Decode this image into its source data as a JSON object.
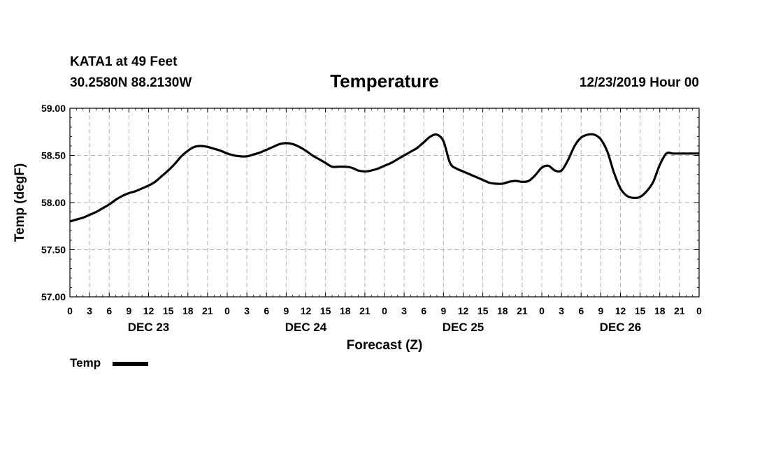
{
  "header": {
    "station": "KATA1 at 49 Feet",
    "coords": "30.2580N 88.2130W",
    "title": "Temperature",
    "datetime": "12/23/2019 Hour 00"
  },
  "chart_data": {
    "type": "line",
    "title": "Temperature",
    "xlabel": "Forecast (Z)",
    "ylabel": "Temp (degF)",
    "ylim": [
      57.0,
      59.0
    ],
    "xlim": [
      0,
      96
    ],
    "yticks": [
      "57.00",
      "57.50",
      "58.00",
      "58.50",
      "59.00"
    ],
    "ytick_values": [
      57.0,
      57.5,
      58.0,
      58.5,
      59.0
    ],
    "xtick_labels": [
      "0",
      "3",
      "6",
      "9",
      "12",
      "15",
      "18",
      "21",
      "0",
      "3",
      "6",
      "9",
      "12",
      "15",
      "18",
      "21",
      "0",
      "3",
      "6",
      "9",
      "12",
      "15",
      "18",
      "21",
      "0",
      "3",
      "6",
      "9",
      "12",
      "15",
      "18",
      "21",
      "0"
    ],
    "day_labels": [
      {
        "label": "DEC 23",
        "hour": 12
      },
      {
        "label": "DEC 24",
        "hour": 36
      },
      {
        "label": "DEC 25",
        "hour": 60
      },
      {
        "label": "DEC 26",
        "hour": 84
      }
    ],
    "grid": true,
    "legend": "bottom-left",
    "series": [
      {
        "name": "Temp",
        "color": "#000000",
        "x": [
          0,
          1,
          2,
          3,
          4,
          5,
          6,
          7,
          8,
          9,
          10,
          11,
          12,
          13,
          14,
          15,
          16,
          17,
          18,
          19,
          20,
          21,
          22,
          23,
          24,
          25,
          26,
          27,
          28,
          29,
          30,
          31,
          32,
          33,
          34,
          35,
          36,
          37,
          38,
          39,
          40,
          41,
          42,
          43,
          44,
          45,
          46,
          47,
          48,
          49,
          50,
          51,
          52,
          53,
          54,
          55,
          56,
          57,
          58,
          59,
          60,
          61,
          62,
          63,
          64,
          65,
          66,
          67,
          68,
          69,
          70,
          71,
          72,
          73,
          74,
          75,
          76,
          77,
          78,
          79,
          80,
          81,
          82,
          83,
          84,
          85,
          86,
          87,
          88,
          89,
          90,
          91,
          92,
          93,
          94,
          95,
          96
        ],
        "values": [
          57.8,
          57.82,
          57.84,
          57.87,
          57.9,
          57.94,
          57.98,
          58.03,
          58.07,
          58.1,
          58.12,
          58.15,
          58.18,
          58.22,
          58.28,
          58.34,
          58.41,
          58.49,
          58.55,
          58.59,
          58.6,
          58.59,
          58.57,
          58.55,
          58.52,
          58.5,
          58.49,
          58.49,
          58.51,
          58.53,
          58.56,
          58.59,
          58.62,
          58.63,
          58.62,
          58.59,
          58.55,
          58.5,
          58.46,
          58.42,
          58.38,
          58.38,
          58.38,
          58.37,
          58.34,
          58.33,
          58.34,
          58.36,
          58.39,
          58.42,
          58.46,
          58.5,
          58.54,
          58.58,
          58.64,
          58.7,
          58.72,
          58.65,
          58.42,
          58.36,
          58.33,
          58.3,
          58.27,
          58.24,
          58.21,
          58.2,
          58.2,
          58.22,
          58.23,
          58.22,
          58.23,
          58.29,
          58.37,
          58.39,
          58.34,
          58.34,
          58.45,
          58.6,
          58.69,
          58.72,
          58.72,
          58.67,
          58.54,
          58.32,
          58.15,
          58.07,
          58.05,
          58.06,
          58.12,
          58.22,
          58.4,
          58.52,
          58.52,
          58.52,
          58.52,
          58.52,
          58.52
        ]
      }
    ]
  },
  "legend": {
    "label": "Temp"
  }
}
